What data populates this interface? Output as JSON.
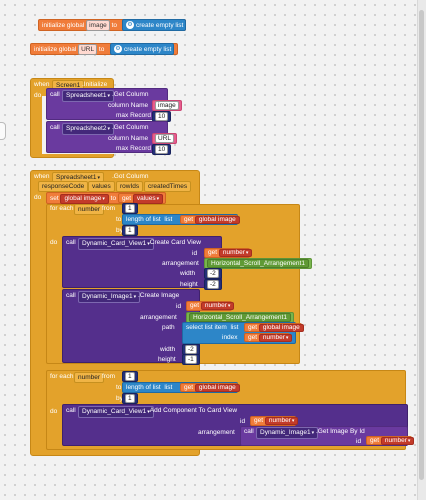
{
  "globals": [
    {
      "label": "initialize global",
      "name": "image",
      "to": "to",
      "value": "create empty list"
    },
    {
      "label": "initialize global",
      "name": "URL",
      "to": "to",
      "value": "create empty list"
    }
  ],
  "screen_init": {
    "when": "when",
    "component": "Screen1",
    "event": ".Initialize",
    "do": "do",
    "calls": [
      {
        "call": "call",
        "component": "Spreadsheet1",
        "method": ".Get Column",
        "column_name_label": "column Name",
        "column_name": "image",
        "max_record_label": "max Record",
        "max_record": "10"
      },
      {
        "call": "call",
        "component": "Spreadsheet2",
        "method": ".Get Column",
        "column_name_label": "column Name",
        "column_name": "URL",
        "max_record_label": "max Record",
        "max_record": "10"
      }
    ]
  },
  "got_column": {
    "when": "when",
    "component": "Spreadsheet1",
    "event": ".Got Column",
    "params": [
      "responseCode",
      "values",
      "rowIds",
      "createdTimes"
    ],
    "do": "do",
    "set": "set",
    "set_var": "global image",
    "set_to": "to",
    "get": "get",
    "get_var": "values",
    "loop1": {
      "for_each": "for each",
      "var": "number",
      "from": "from",
      "from_val": "1",
      "to": "to",
      "length_of_list": "length of list",
      "list": "list",
      "get": "get",
      "list_var": "global image",
      "by": "by",
      "by_val": "1",
      "do": "do"
    },
    "create_card": {
      "call": "call",
      "component": "Dynamic_Card_View1",
      "method": ".Create Card View",
      "id_label": "id",
      "id_get": "get",
      "id_var": "number",
      "arrangement_label": "arrangement",
      "arrangement": "Horizontal_Scroll_Arrangement1",
      "width_label": "width",
      "width": "-2",
      "height_label": "height",
      "height": "-2"
    },
    "create_image": {
      "call": "call",
      "component": "Dynamic_Image1",
      "method": ".Create Image",
      "id_label": "id",
      "id_get": "get",
      "id_var": "number",
      "arrangement_label": "arrangement",
      "arrangement": "Horizontal_Scroll_Arrangement1",
      "path_label": "path",
      "select_list_item": "select list item",
      "list_label": "list",
      "list_get": "get",
      "list_var": "global image",
      "index_label": "index",
      "index_get": "get",
      "index_var": "number",
      "width_label": "width",
      "width": "-2",
      "height_label": "height",
      "height": "-1"
    },
    "loop2": {
      "for_each": "for each",
      "var": "number",
      "from": "from",
      "from_val": "1",
      "to": "to",
      "length_of_list": "length of list",
      "list": "list",
      "get": "get",
      "list_var": "global image",
      "by": "by",
      "by_val": "1",
      "do": "do"
    },
    "add_component": {
      "call": "call",
      "component": "Dynamic_Card_View1",
      "method": ".Add Component To Card View",
      "id_label": "id",
      "id_get": "get",
      "id_var": "number",
      "arrangement_label": "arrangement",
      "inner_call": "call",
      "inner_component": "Dynamic_Image1",
      "inner_method": ".Get Image By Id",
      "inner_id_label": "id",
      "inner_id_get": "get",
      "inner_id_var": "number"
    }
  },
  "colors": {
    "variables": "#d44b3a",
    "lists": "#2d86c8",
    "events": "#e3a22b",
    "components": "#6a3a9f",
    "math": "#232f79",
    "text": "#e85b8d",
    "control": "#e3a22b"
  }
}
